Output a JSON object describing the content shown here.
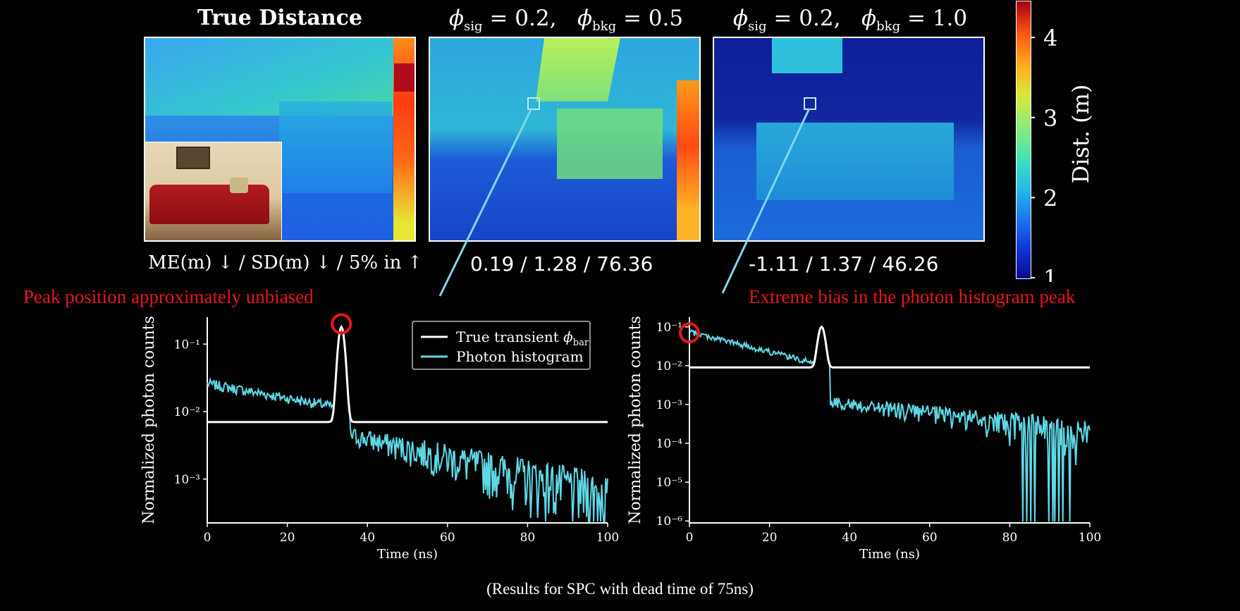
{
  "panels": [
    {
      "title": "True Distance",
      "metric_label": "ME(m) ↓ / SD(m) ↓ / 5% in ↑"
    },
    {
      "title_sig": "0.2",
      "title_bkg": "0.5",
      "metrics": "0.19 / 1.28 / 76.36"
    },
    {
      "title_sig": "0.2",
      "title_bkg": "1.0",
      "metrics": "-1.11 / 1.37 / 46.26"
    }
  ],
  "symbols": {
    "phi": "ϕ",
    "sig": "sig",
    "bkg": "bkg",
    "eq": " = ",
    "sep": ",",
    "bar": "bar"
  },
  "colorbar": {
    "label": "Dist. (m)",
    "ticks": [
      1,
      2,
      3,
      4
    ],
    "range": [
      1,
      4.45
    ]
  },
  "annotations": {
    "left": "Peak position approximately unbiased",
    "right": "Extreme bias in the photon histogram peak"
  },
  "caption": "(Results for SPC with dead time of 75ns)",
  "chart_data": [
    {
      "type": "line",
      "xlabel": "Time (ns)",
      "ylabel": "Normalized photon counts",
      "xlim": [
        0,
        100
      ],
      "ylim_log10": [
        -3.65,
        -0.6
      ],
      "xticks": [
        0,
        20,
        40,
        60,
        80,
        100
      ],
      "yticks": [
        "10⁻¹",
        "10⁻²",
        "10⁻³"
      ],
      "ytick_values": [
        -1,
        -2,
        -3
      ],
      "legend": [
        "True transient ",
        "Photon histogram"
      ],
      "legend_position": "top-right",
      "series": [
        {
          "name": "True transient",
          "baseline": 0.007,
          "peak_x": 33.5,
          "peak_y": 0.18
        },
        {
          "name": "Photon histogram",
          "start_y": 0.026,
          "pre_peak_end_y": 0.012,
          "post_peak_y": 0.0045,
          "end_y": 0.0006
        }
      ],
      "color_true": "#ffffff",
      "color_hist": "#5fd8e6",
      "marker": {
        "x": 33.5,
        "y": 0.2
      }
    },
    {
      "type": "line",
      "xlabel": "Time (ns)",
      "ylabel": "Normalized photon counts",
      "xlim": [
        0,
        100
      ],
      "ylim_log10": [
        -6.05,
        -0.75
      ],
      "xticks": [
        0,
        20,
        40,
        60,
        80,
        100
      ],
      "yticks": [
        "10⁻¹",
        "10⁻²",
        "10⁻³",
        "10⁻⁴",
        "10⁻⁵",
        "10⁻⁶"
      ],
      "ytick_values": [
        -1,
        -2,
        -3,
        -4,
        -5,
        -6
      ],
      "series": [
        {
          "name": "True transient",
          "baseline": 0.009,
          "peak_x": 33.0,
          "peak_y": 0.1
        },
        {
          "name": "Photon histogram",
          "start_y": 0.075,
          "pre_peak_end_y": 0.012,
          "post_peak_y": 0.0012,
          "end_y": 0.0002
        }
      ],
      "color_true": "#ffffff",
      "color_hist": "#5fd8e6",
      "marker": {
        "x": 0,
        "y": 0.07
      }
    }
  ]
}
